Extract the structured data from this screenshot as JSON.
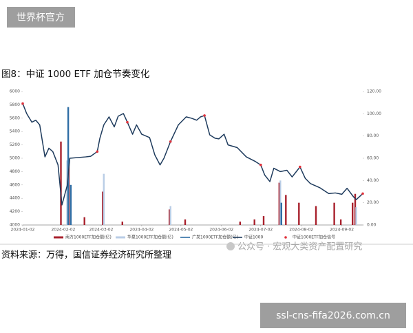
{
  "watermark": "世界杯官方",
  "figure_title": "图8：中证 1000 ETF 加仓节奏变化",
  "source": "资料来源：万得，国信证券经济研究所整理",
  "overlay_watermark": "公众号 · 宏观大类资产配置研究",
  "footer_url": "ssl-cns-fifa2026.com.cn",
  "chart_data": {
    "type": "combo",
    "xlim": [
      "2024-01-02",
      "2024-09-18"
    ],
    "xticks": [
      "2024-01-02",
      "2024-02-02",
      "2024-03-02",
      "2024-04-02",
      "2024-05-02",
      "2024-06-02",
      "2024-07-02",
      "2024-08-02",
      "2024-09-02"
    ],
    "ylim": [
      4000,
      6000
    ],
    "yticks": [
      4000,
      4200,
      4400,
      4600,
      4800,
      5000,
      5200,
      5400,
      5600,
      5800,
      6000
    ],
    "y2lim": [
      0,
      120
    ],
    "y2ticks": [
      {
        "value": 0,
        "label": "0.00"
      },
      {
        "value": 20,
        "label": "20.00"
      },
      {
        "value": 40,
        "label": "40.00"
      },
      {
        "value": 60,
        "label": "60.00"
      },
      {
        "value": 80,
        "label": "80.00"
      },
      {
        "value": 100,
        "label": "100.00"
      },
      {
        "value": 120,
        "label": "120.00"
      }
    ],
    "series": [
      {
        "name": "南方1000ETF加仓额(亿)",
        "type": "bar",
        "axis": "y2",
        "color": "#a8202c",
        "x": [
          "2024-02-01",
          "2024-02-07",
          "2024-02-19",
          "2024-03-04",
          "2024-03-19",
          "2024-04-24",
          "2024-05-06",
          "2024-06-17",
          "2024-06-28",
          "2024-07-05",
          "2024-07-17",
          "2024-07-22",
          "2024-08-01",
          "2024-08-14",
          "2024-08-28",
          "2024-09-02",
          "2024-09-11",
          "2024-09-13"
        ],
        "values": [
          75,
          54,
          7,
          30,
          3,
          14,
          5,
          3,
          5,
          8,
          38,
          27,
          20,
          17,
          20,
          5,
          20,
          28
        ]
      },
      {
        "name": "华夏1000ETF加仓额(亿)",
        "type": "bar",
        "axis": "y2",
        "color": "#b9cde6",
        "x": [
          "2024-02-05",
          "2024-03-04",
          "2024-04-24",
          "2024-07-17",
          "2024-09-13"
        ],
        "values": [
          58,
          46,
          17,
          40,
          16
        ]
      },
      {
        "name": "广发1000ETF加仓额(亿)",
        "type": "bar",
        "axis": "y2",
        "color": "#2e6da4",
        "x": [
          "2024-02-05",
          "2024-02-07",
          "2024-07-17"
        ],
        "values": [
          106,
          36,
          20
        ]
      },
      {
        "name": "中证1000",
        "type": "line",
        "color": "#1d3a5c",
        "x": [
          "2024-01-02",
          "2024-01-05",
          "2024-01-09",
          "2024-01-12",
          "2024-01-15",
          "2024-01-19",
          "2024-01-22",
          "2024-01-25",
          "2024-01-29",
          "2024-02-01",
          "2024-02-05",
          "2024-02-07",
          "2024-02-19",
          "2024-02-23",
          "2024-02-28",
          "2024-03-01",
          "2024-03-04",
          "2024-03-08",
          "2024-03-12",
          "2024-03-15",
          "2024-03-19",
          "2024-03-22",
          "2024-03-26",
          "2024-03-29",
          "2024-04-02",
          "2024-04-08",
          "2024-04-12",
          "2024-04-16",
          "2024-04-19",
          "2024-04-24",
          "2024-04-30",
          "2024-05-06",
          "2024-05-10",
          "2024-05-14",
          "2024-05-17",
          "2024-05-20",
          "2024-05-24",
          "2024-05-28",
          "2024-05-31",
          "2024-06-04",
          "2024-06-07",
          "2024-06-14",
          "2024-06-21",
          "2024-06-28",
          "2024-07-02",
          "2024-07-05",
          "2024-07-09",
          "2024-07-12",
          "2024-07-17",
          "2024-07-22",
          "2024-07-26",
          "2024-08-01",
          "2024-08-05",
          "2024-08-09",
          "2024-08-16",
          "2024-08-23",
          "2024-08-28",
          "2024-09-02",
          "2024-09-06",
          "2024-09-11",
          "2024-09-13",
          "2024-09-18"
        ],
        "values": [
          5820,
          5670,
          5540,
          5570,
          5500,
          5020,
          5150,
          5100,
          4900,
          4300,
          4590,
          5000,
          5020,
          5030,
          5100,
          5300,
          5500,
          5620,
          5470,
          5630,
          5670,
          5540,
          5360,
          5500,
          5360,
          5310,
          5050,
          4900,
          5000,
          5250,
          5500,
          5620,
          5600,
          5570,
          5620,
          5640,
          5350,
          5300,
          5290,
          5360,
          5200,
          5160,
          5020,
          4950,
          4900,
          4750,
          4650,
          4850,
          4800,
          4820,
          4720,
          4870,
          4700,
          4620,
          4560,
          4470,
          4480,
          4460,
          4550,
          4420,
          4380,
          4470
        ]
      },
      {
        "name": "中证1000ETF加仓信号",
        "type": "scatter",
        "color": "#e0303a",
        "x": [
          "2024-01-02",
          "2024-02-28",
          "2024-03-22",
          "2024-04-24",
          "2024-05-20",
          "2024-07-02",
          "2024-08-01",
          "2024-09-18"
        ],
        "values": [
          5820,
          5100,
          5540,
          5250,
          5640,
          4900,
          4870,
          4470
        ]
      }
    ]
  }
}
